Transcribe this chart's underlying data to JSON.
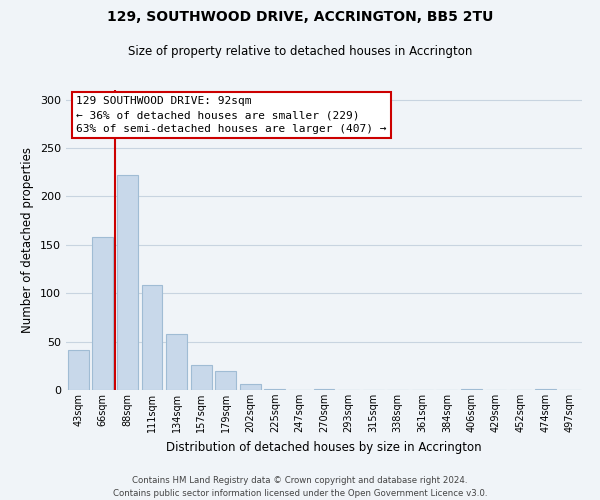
{
  "title": "129, SOUTHWOOD DRIVE, ACCRINGTON, BB5 2TU",
  "subtitle": "Size of property relative to detached houses in Accrington",
  "xlabel": "Distribution of detached houses by size in Accrington",
  "ylabel": "Number of detached properties",
  "bar_labels": [
    "43sqm",
    "66sqm",
    "88sqm",
    "111sqm",
    "134sqm",
    "157sqm",
    "179sqm",
    "202sqm",
    "225sqm",
    "247sqm",
    "270sqm",
    "293sqm",
    "315sqm",
    "338sqm",
    "361sqm",
    "384sqm",
    "406sqm",
    "429sqm",
    "452sqm",
    "474sqm",
    "497sqm"
  ],
  "bar_values": [
    41,
    158,
    222,
    109,
    58,
    26,
    20,
    6,
    1,
    0,
    1,
    0,
    0,
    0,
    0,
    0,
    1,
    0,
    0,
    1,
    0
  ],
  "bar_color": "#c8d8ea",
  "bar_edge_color": "#a0bcd4",
  "ylim": [
    0,
    310
  ],
  "yticks": [
    0,
    50,
    100,
    150,
    200,
    250,
    300
  ],
  "property_line_color": "#cc0000",
  "annotation_title": "129 SOUTHWOOD DRIVE: 92sqm",
  "annotation_line1": "← 36% of detached houses are smaller (229)",
  "annotation_line2": "63% of semi-detached houses are larger (407) →",
  "annotation_box_color": "#ffffff",
  "annotation_box_edge_color": "#cc0000",
  "footer_line1": "Contains HM Land Registry data © Crown copyright and database right 2024.",
  "footer_line2": "Contains public sector information licensed under the Open Government Licence v3.0.",
  "background_color": "#f0f4f8",
  "grid_color": "#c8d4e0"
}
